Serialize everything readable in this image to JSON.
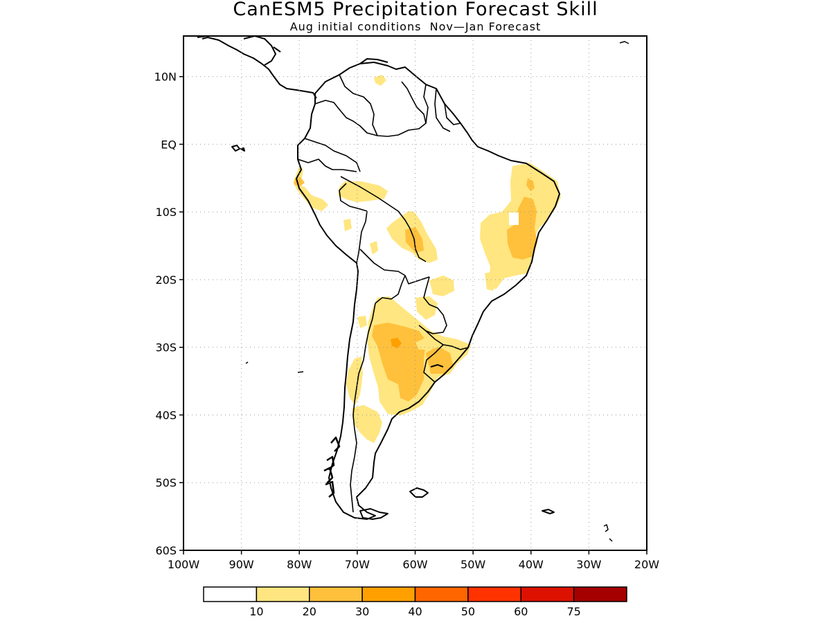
{
  "title": "CanESM5 Precipitation Forecast Skill",
  "subtitle": "Aug initial conditions  Nov—Jan Forecast",
  "map": {
    "lon_range": [
      -100,
      -20
    ],
    "lat_range": [
      -60,
      16
    ],
    "grid": "dotted",
    "lat_labels": [
      {
        "lat": 10,
        "text": "10N"
      },
      {
        "lat": 0,
        "text": "EQ"
      },
      {
        "lat": -10,
        "text": "10S"
      },
      {
        "lat": -20,
        "text": "20S"
      },
      {
        "lat": -30,
        "text": "30S"
      },
      {
        "lat": -40,
        "text": "40S"
      },
      {
        "lat": -50,
        "text": "50S"
      },
      {
        "lat": -60,
        "text": "60S"
      }
    ],
    "lon_labels": [
      {
        "lon": -100,
        "text": "100W"
      },
      {
        "lon": -90,
        "text": "90W"
      },
      {
        "lon": -80,
        "text": "80W"
      },
      {
        "lon": -70,
        "text": "70W"
      },
      {
        "lon": -60,
        "text": "60W"
      },
      {
        "lon": -50,
        "text": "50W"
      },
      {
        "lon": -40,
        "text": "40W"
      },
      {
        "lon": -30,
        "text": "30W"
      },
      {
        "lon": -20,
        "text": "20W"
      }
    ]
  },
  "colorbar": {
    "colors": [
      "#ffffff",
      "#ffe680",
      "#ffc03c",
      "#ffa000",
      "#ff6600",
      "#ff3300",
      "#dd1100",
      "#a50000"
    ],
    "labels": [
      "10",
      "20",
      "30",
      "40",
      "50",
      "60",
      "75"
    ]
  }
}
